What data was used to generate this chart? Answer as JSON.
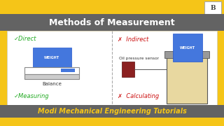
{
  "bg_color": "#f5c518",
  "title_bar_color": "#636363",
  "title_text": "Methods of Measurement",
  "title_color": "#ffffff",
  "bottom_bar_color": "#636363",
  "bottom_text": "Modi Mechanical Engineering Tutorials",
  "bottom_text_color": "#f5c518",
  "panel_bg": "#ffffff",
  "direct_label": "✓Direct",
  "indirect_label": "✗  Indirect",
  "measuring_label": "✓Measuring",
  "calculating_label": "✗  Calculating",
  "check_color": "#22aa22",
  "cross_color": "#cc1111",
  "weight_box_color": "#4477dd",
  "weight_text": "WEIGHT",
  "weight_text_color": "#ffffff",
  "balance_label": "Balance",
  "oil_sensor_color": "#8b2020",
  "cylinder_fill": "#e8d8a0",
  "cylinder_top_color": "#999999",
  "logo_text": "B"
}
